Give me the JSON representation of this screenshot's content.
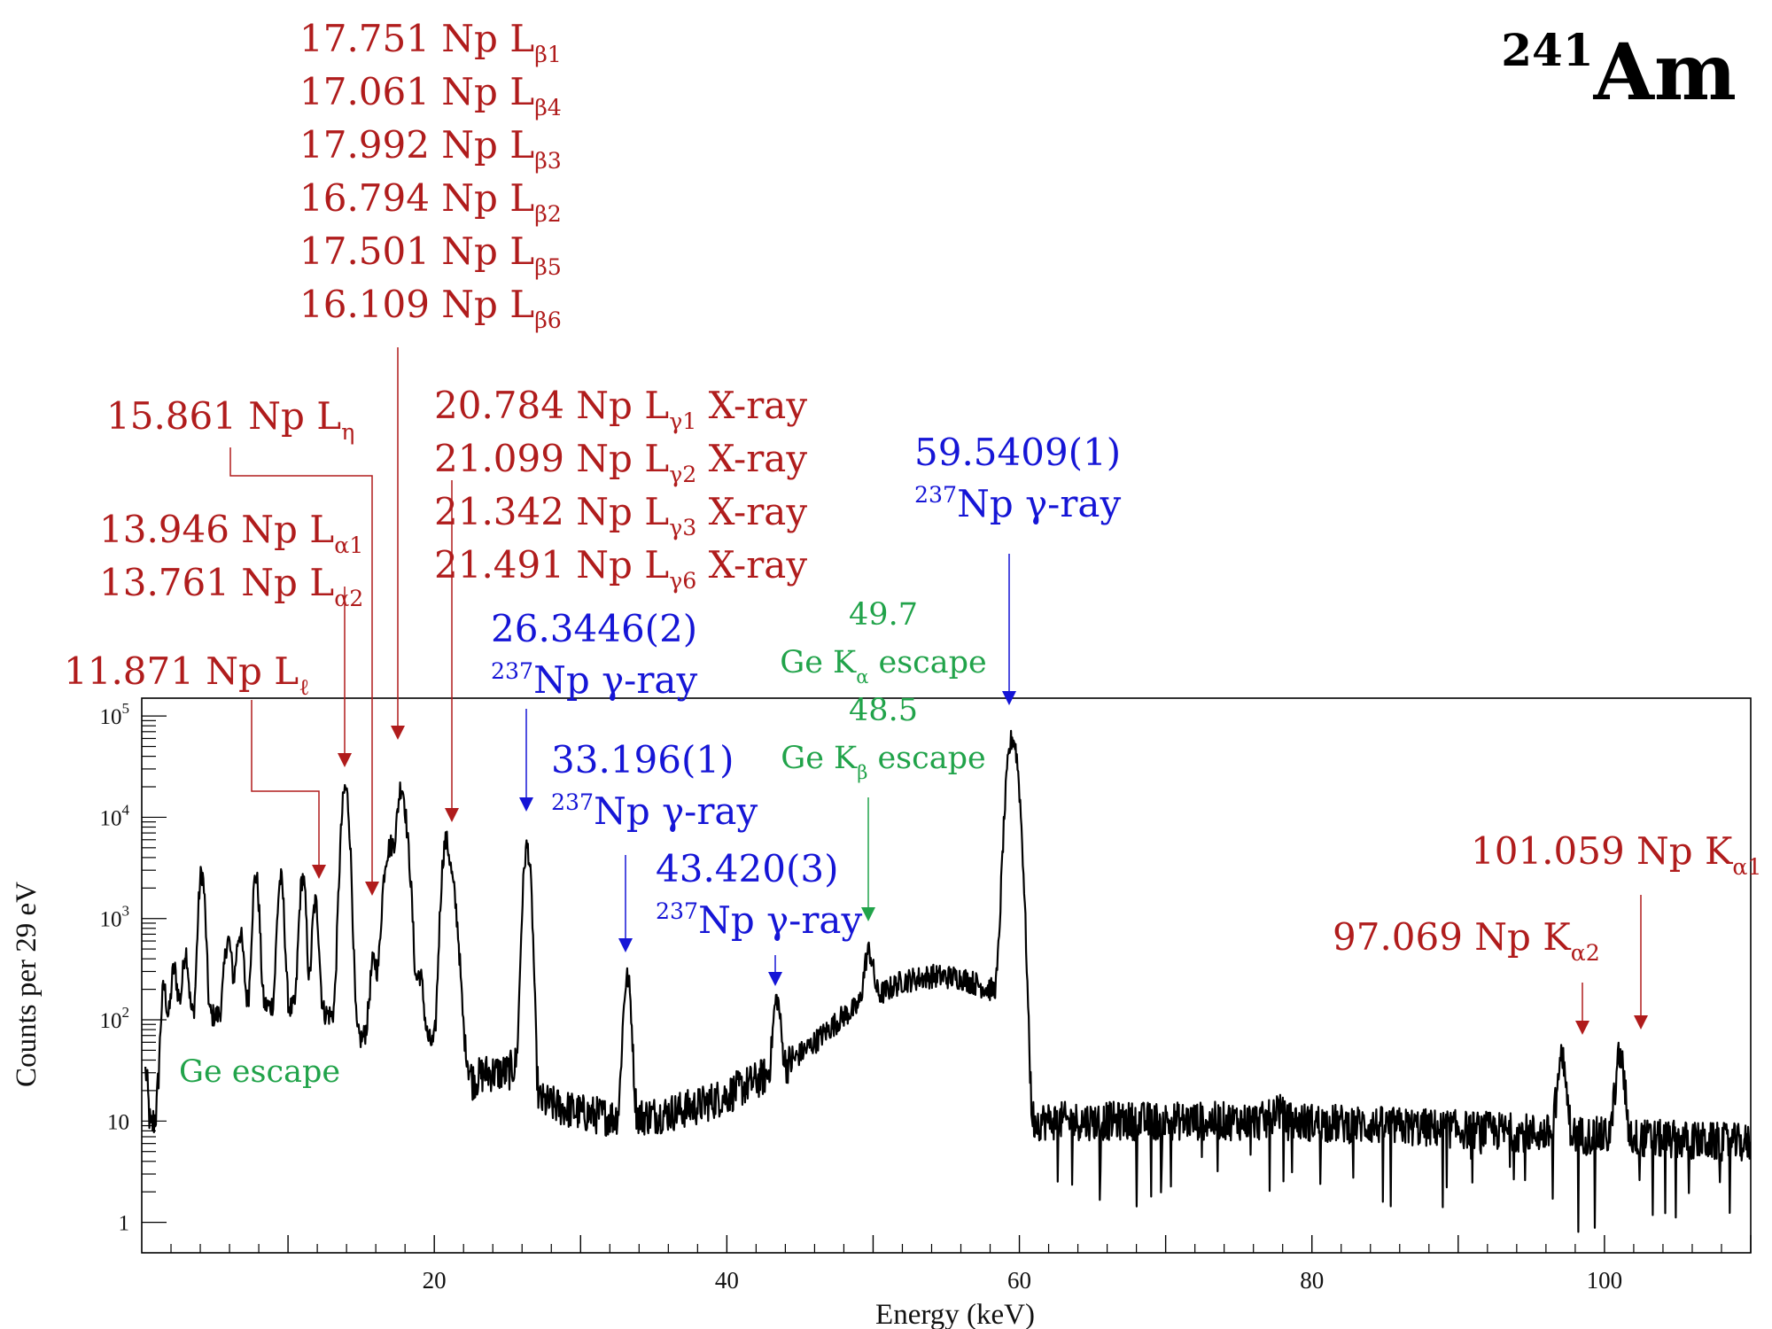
{
  "chart_data": {
    "type": "line",
    "title": "Am",
    "title_superscript": "241",
    "xlabel": "Energy (keV)",
    "ylabel": "Counts per 29 eV",
    "xlim": [
      0,
      110
    ],
    "ylim": [
      0.5,
      150000
    ],
    "y_scale": "log",
    "grid": false,
    "x_ticks": [
      20,
      40,
      60,
      80,
      100
    ],
    "y_ticks": [
      {
        "value": 1,
        "label": "1"
      },
      {
        "value": 10,
        "label": "10"
      },
      {
        "value": 100,
        "label": "10",
        "exp": "2"
      },
      {
        "value": 1000,
        "label": "10",
        "exp": "3"
      },
      {
        "value": 10000,
        "label": "10",
        "exp": "4"
      },
      {
        "value": 100000,
        "label": "10",
        "exp": "5"
      }
    ],
    "spectrum": {
      "background": [
        [
          0.3,
          30
        ],
        [
          0.6,
          8
        ],
        [
          1.0,
          12
        ],
        [
          1.5,
          70
        ],
        [
          2.5,
          150
        ],
        [
          3.5,
          110
        ],
        [
          5.5,
          110
        ],
        [
          8,
          140
        ],
        [
          10,
          130
        ],
        [
          12,
          125
        ],
        [
          13,
          110
        ],
        [
          15,
          65
        ],
        [
          16.5,
          100
        ],
        [
          18.5,
          115
        ],
        [
          19.3,
          70
        ],
        [
          20,
          55
        ],
        [
          22,
          60
        ],
        [
          22.6,
          25
        ],
        [
          23.5,
          30
        ],
        [
          25,
          30
        ],
        [
          26,
          40
        ],
        [
          27,
          16
        ],
        [
          30,
          12
        ],
        [
          32,
          11
        ],
        [
          34,
          11
        ],
        [
          36,
          12
        ],
        [
          38,
          14
        ],
        [
          40,
          18
        ],
        [
          42,
          25
        ],
        [
          44,
          35
        ],
        [
          46,
          60
        ],
        [
          48,
          110
        ],
        [
          49.6,
          150
        ],
        [
          52,
          240
        ],
        [
          54,
          270
        ],
        [
          56,
          260
        ],
        [
          58,
          200
        ],
        [
          59.2,
          170
        ],
        [
          60.2,
          10
        ],
        [
          77,
          10
        ],
        [
          77.6,
          14
        ],
        [
          78.2,
          10
        ],
        [
          110,
          6
        ]
      ],
      "peaks": [
        {
          "e": 1.5,
          "h": 140,
          "w": 0.15
        },
        {
          "e": 2.2,
          "h": 200,
          "w": 0.15
        },
        {
          "e": 3.0,
          "h": 350,
          "w": 0.15
        },
        {
          "e": 4.1,
          "h": 2700,
          "w": 0.17
        },
        {
          "e": 5.9,
          "h": 500,
          "w": 0.2
        },
        {
          "e": 6.7,
          "h": 600,
          "w": 0.2
        },
        {
          "e": 7.8,
          "h": 2500,
          "w": 0.17
        },
        {
          "e": 9.5,
          "h": 2300,
          "w": 0.17
        },
        {
          "e": 11.0,
          "h": 2400,
          "w": 0.17
        },
        {
          "e": 11.871,
          "h": 1300,
          "w": 0.17
        },
        {
          "e": 13.761,
          "h": 3000,
          "w": 0.2
        },
        {
          "e": 13.946,
          "h": 17000,
          "w": 0.2
        },
        {
          "e": 15.861,
          "h": 300,
          "w": 0.2
        },
        {
          "e": 16.8,
          "h": 4000,
          "w": 0.25
        },
        {
          "e": 17.2,
          "h": 3500,
          "w": 0.2
        },
        {
          "e": 17.751,
          "h": 20000,
          "w": 0.22
        },
        {
          "e": 18.2,
          "h": 3000,
          "w": 0.2
        },
        {
          "e": 19.0,
          "h": 200,
          "w": 0.2
        },
        {
          "e": 20.784,
          "h": 5500,
          "w": 0.22
        },
        {
          "e": 21.2,
          "h": 1500,
          "w": 0.2
        },
        {
          "e": 21.5,
          "h": 600,
          "w": 0.2
        },
        {
          "e": 26.3446,
          "h": 5000,
          "w": 0.2
        },
        {
          "e": 33.196,
          "h": 250,
          "w": 0.2
        },
        {
          "e": 43.42,
          "h": 130,
          "w": 0.2
        },
        {
          "e": 49.7,
          "h": 320,
          "w": 0.25
        },
        {
          "e": 59.5409,
          "h": 60000,
          "w": 0.3
        },
        {
          "e": 97.069,
          "h": 30,
          "w": 0.25
        },
        {
          "e": 101.059,
          "h": 35,
          "w": 0.25
        }
      ],
      "noise_amplitude_log10": 0.12
    }
  },
  "colors": {
    "xray": "#b01c1c",
    "gamma": "#1515d6",
    "escape": "#21a34a",
    "trace": "#000000"
  },
  "annotations": [
    {
      "id": "lb",
      "color": "xray",
      "lines": [
        {
          "text": "17.751 Np L",
          "sub": "β1"
        },
        {
          "text": "17.061 Np L",
          "sub": "β4"
        },
        {
          "text": "17.992 Np L",
          "sub": "β3"
        },
        {
          "text": "16.794 Np L",
          "sub": "β2"
        },
        {
          "text": "17.501 Np L",
          "sub": "β5"
        },
        {
          "text": "16.109 Np L",
          "sub": "β6"
        }
      ]
    },
    {
      "id": "lg",
      "color": "xray",
      "lines": [
        {
          "text": "20.784 Np L",
          "sub": "γ1",
          "after": " X-ray"
        },
        {
          "text": "21.099 Np L",
          "sub": "γ2",
          "after": " X-ray"
        },
        {
          "text": "21.342 Np L",
          "sub": "γ3",
          "after": " X-ray"
        },
        {
          "text": "21.491 Np L",
          "sub": "γ6",
          "after": " X-ray"
        }
      ]
    },
    {
      "id": "leta",
      "color": "xray",
      "lines": [
        {
          "text": "15.861 Np L",
          "sub": "η"
        }
      ]
    },
    {
      "id": "la",
      "color": "xray",
      "lines": [
        {
          "text": "13.946 Np L",
          "sub": "α1"
        },
        {
          "text": "13.761 Np L",
          "sub": "α2"
        }
      ]
    },
    {
      "id": "ll",
      "color": "xray",
      "lines": [
        {
          "text": "11.871 Np L",
          "sub": "ℓ"
        }
      ]
    },
    {
      "id": "g595",
      "color": "gamma",
      "lines": [
        {
          "text": "59.5409(1)"
        },
        {
          "sup": "237",
          "text": "Np γ-ray"
        }
      ]
    },
    {
      "id": "g263",
      "color": "gamma",
      "lines": [
        {
          "text": "26.3446(2)"
        },
        {
          "sup": "237",
          "text": "Np γ-ray"
        }
      ]
    },
    {
      "id": "g332",
      "color": "gamma",
      "lines": [
        {
          "text": "33.196(1)"
        },
        {
          "sup": "237",
          "text": "Np γ-ray"
        }
      ]
    },
    {
      "id": "g434",
      "color": "gamma",
      "lines": [
        {
          "text": "43.420(3)"
        },
        {
          "sup": "237",
          "text": "Np γ-ray"
        }
      ]
    },
    {
      "id": "esc",
      "color": "escape",
      "lines": [
        {
          "text": "49.7"
        },
        {
          "text": "Ge K",
          "sub": "α",
          "after": " escape"
        },
        {
          "text": "48.5"
        },
        {
          "text": "Ge K",
          "sub": "β",
          "after": " escape"
        }
      ]
    },
    {
      "id": "geesc",
      "color": "escape",
      "lines": [
        {
          "text": "Ge escape"
        }
      ]
    },
    {
      "id": "ka1",
      "color": "xray",
      "lines": [
        {
          "text": "101.059 Np K",
          "sub": "α1"
        }
      ]
    },
    {
      "id": "ka2",
      "color": "xray",
      "lines": [
        {
          "text": "97.069 Np K",
          "sub": "α2"
        }
      ]
    }
  ]
}
